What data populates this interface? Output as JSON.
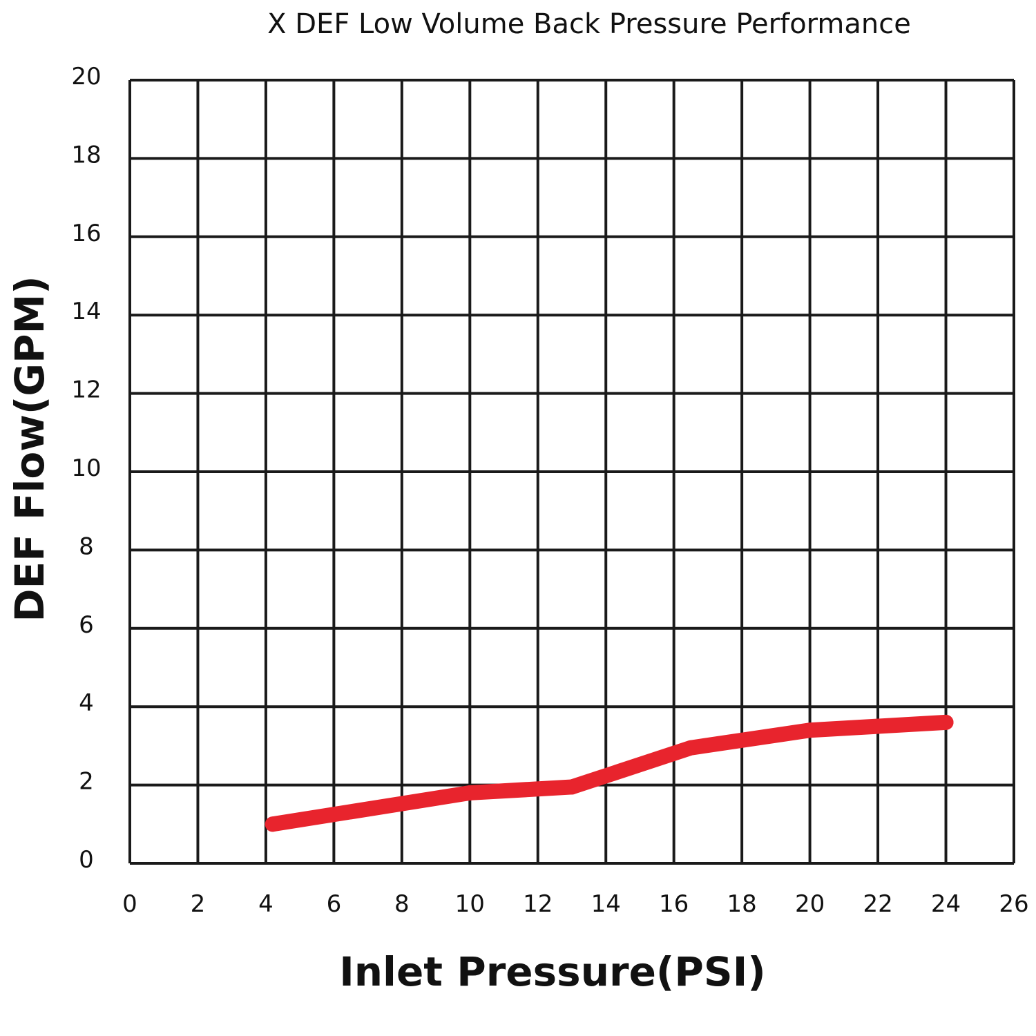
{
  "chart_data": {
    "type": "line",
    "title": "X DEF Low Volume Back Pressure Performance",
    "xlabel": "Inlet Pressure(PSI)",
    "ylabel": "DEF Flow(GPM)",
    "xlim": [
      0,
      26
    ],
    "ylim": [
      0,
      20
    ],
    "x_ticks": [
      "0",
      "2",
      "4",
      "6",
      "8",
      "10",
      "12",
      "14",
      "16",
      "18",
      "20",
      "22",
      "24",
      "26"
    ],
    "y_ticks": [
      "0",
      "2",
      "4",
      "6",
      "8",
      "10",
      "12",
      "14",
      "16",
      "18",
      "20"
    ],
    "grid": true,
    "series": [
      {
        "color": "#e8242d",
        "x": [
          4.2,
          10,
          13,
          16.5,
          20,
          24
        ],
        "y": [
          1.0,
          1.8,
          1.95,
          2.95,
          3.4,
          3.6
        ]
      }
    ]
  }
}
